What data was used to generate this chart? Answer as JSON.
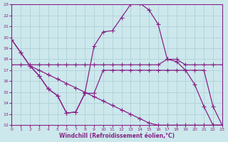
{
  "xlabel": "Windchill (Refroidissement éolien,°C)",
  "bg_color": "#cce8ec",
  "grid_color": "#aaccd4",
  "line_color": "#882288",
  "xlim": [
    0,
    23
  ],
  "ylim": [
    12,
    23
  ],
  "xticks": [
    0,
    1,
    2,
    3,
    4,
    5,
    6,
    7,
    8,
    9,
    10,
    11,
    12,
    13,
    14,
    15,
    16,
    17,
    18,
    19,
    20,
    21,
    22,
    23
  ],
  "yticks": [
    12,
    13,
    14,
    15,
    16,
    17,
    18,
    19,
    20,
    21,
    22,
    23
  ],
  "line1_x": [
    0,
    1,
    2,
    3,
    4,
    5,
    6,
    7,
    8,
    9,
    10,
    11,
    12,
    13,
    14,
    15,
    16,
    17,
    18,
    19,
    20,
    21,
    22,
    23
  ],
  "line1_y": [
    19.8,
    18.6,
    17.4,
    16.5,
    15.3,
    14.7,
    13.1,
    13.2,
    14.9,
    19.2,
    20.5,
    20.6,
    21.8,
    23.0,
    23.1,
    22.5,
    21.2,
    18.0,
    17.8,
    17.0,
    15.7,
    13.7,
    12.0,
    12.0
  ],
  "line2_x": [
    0,
    1,
    2,
    3,
    4,
    5,
    6,
    7,
    8,
    9,
    10,
    11,
    12,
    13,
    14,
    15,
    16,
    17,
    18,
    19,
    20,
    21,
    22,
    23
  ],
  "line2_y": [
    17.5,
    17.5,
    17.5,
    17.5,
    17.5,
    17.5,
    17.5,
    17.5,
    17.5,
    17.5,
    17.5,
    17.5,
    17.5,
    17.5,
    17.5,
    17.5,
    17.5,
    18.0,
    18.0,
    17.5,
    17.5,
    17.5,
    17.5,
    17.5
  ],
  "line3_x": [
    0,
    1,
    2,
    3,
    4,
    5,
    6,
    7,
    8,
    9,
    10,
    11,
    12,
    13,
    14,
    15,
    16,
    17,
    18,
    19,
    20,
    21,
    22,
    23
  ],
  "line3_y": [
    19.8,
    18.6,
    17.4,
    17.0,
    16.6,
    16.2,
    15.8,
    15.4,
    15.0,
    14.6,
    14.2,
    13.8,
    13.4,
    13.0,
    12.6,
    12.2,
    12.0,
    12.0,
    12.0,
    12.0,
    12.0,
    12.0,
    12.0,
    12.0
  ],
  "line4_x": [
    2,
    3,
    4,
    5,
    6,
    7,
    8,
    9,
    10,
    11,
    12,
    13,
    14,
    15,
    16,
    17,
    18,
    19,
    20,
    21,
    22,
    23
  ],
  "line4_y": [
    17.4,
    16.5,
    15.3,
    14.7,
    13.1,
    13.2,
    14.9,
    14.9,
    17.0,
    17.0,
    17.0,
    17.0,
    17.0,
    17.0,
    17.0,
    17.0,
    17.0,
    17.0,
    17.0,
    17.0,
    13.7,
    12.0
  ]
}
